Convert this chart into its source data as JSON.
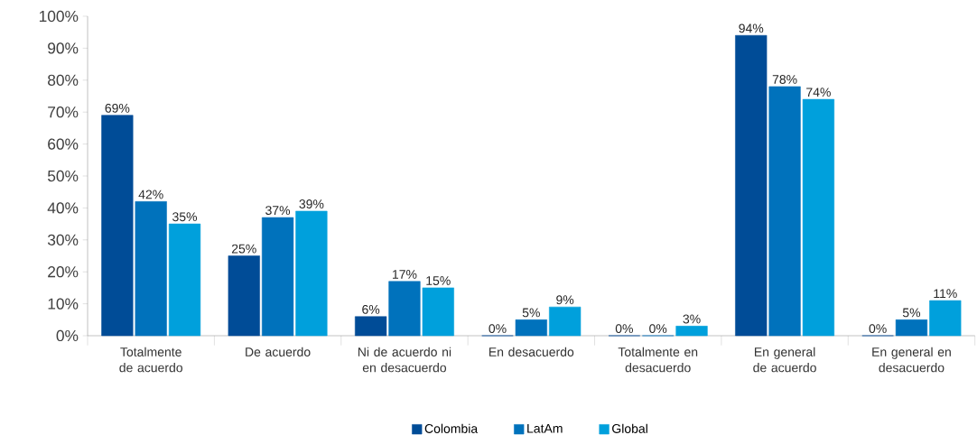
{
  "chart_data": {
    "type": "bar",
    "categories": [
      "Totalmente de acuerdo",
      "De acuerdo",
      "Ni de acuerdo ni en desacuerdo",
      "En desacuerdo",
      "Totalmente en desacuerdo",
      "En general de acuerdo",
      "En general en desacuerdo"
    ],
    "series": [
      {
        "name": "Colombia",
        "color": "#004c97",
        "values": [
          69,
          25,
          6,
          0,
          0,
          94,
          0
        ],
        "value_labels": [
          "69%",
          "25%",
          "6%",
          "0%",
          "0%",
          "94%",
          "0%"
        ]
      },
      {
        "name": "LatAm",
        "color": "#0072bc",
        "values": [
          42,
          37,
          17,
          5,
          0,
          78,
          5
        ],
        "value_labels": [
          "42%",
          "37%",
          "17%",
          "5%",
          "0%",
          "78%",
          "5%"
        ]
      },
      {
        "name": "Global",
        "color": "#00a0dc",
        "values": [
          35,
          39,
          15,
          9,
          3,
          74,
          11
        ],
        "value_labels": [
          "35%",
          "39%",
          "15%",
          "9%",
          "3%",
          "74%",
          "11%"
        ]
      }
    ],
    "ylim": [
      0,
      100
    ],
    "yticks": [
      {
        "value": 0,
        "label": "0%"
      },
      {
        "value": 10,
        "label": "10%"
      },
      {
        "value": 20,
        "label": "20%"
      },
      {
        "value": 30,
        "label": "30%"
      },
      {
        "value": 40,
        "label": "40%"
      },
      {
        "value": 50,
        "label": "50%"
      },
      {
        "value": 60,
        "label": "60%"
      },
      {
        "value": 70,
        "label": "70%"
      },
      {
        "value": 80,
        "label": "80%"
      },
      {
        "value": 90,
        "label": "90%"
      },
      {
        "value": 100,
        "label": "100%"
      }
    ],
    "grid": false,
    "legend": "bottom"
  }
}
